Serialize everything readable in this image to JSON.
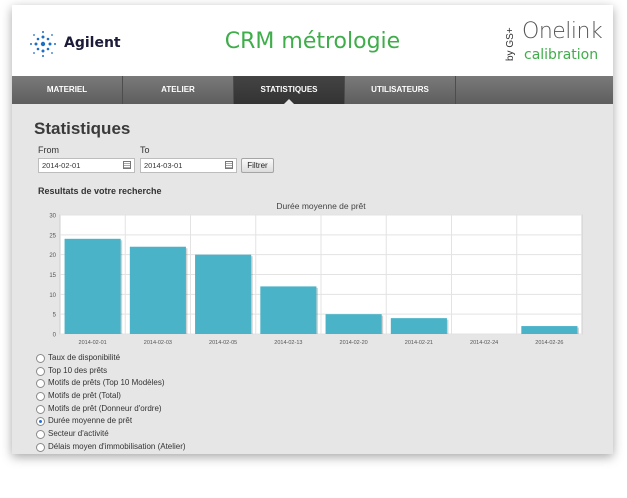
{
  "header": {
    "brand_left": "Agilent",
    "app_title": "CRM métrologie",
    "brand_right_by": "by GS+",
    "brand_right_name": "Onelink",
    "brand_right_sub": "calibration",
    "accent_green": "#3fae4a"
  },
  "nav": {
    "tabs": [
      {
        "label": "MATERIEL",
        "active": false
      },
      {
        "label": "ATELIER",
        "active": false
      },
      {
        "label": "STATISTIQUES",
        "active": true
      },
      {
        "label": "UTILISATEURS",
        "active": false
      }
    ]
  },
  "page": {
    "title": "Statistiques",
    "from_label": "From",
    "to_label": "To",
    "from_value": "2014-02-01",
    "to_value": "2014-03-01",
    "filter_label": "Filtrer",
    "results_title": "Resultats de votre recherche"
  },
  "chart_data": {
    "type": "bar",
    "title": "Durée moyenne de prêt",
    "categories": [
      "2014-02-01",
      "2014-02-03",
      "2014-02-05",
      "2014-02-13",
      "2014-02-20",
      "2014-02-21",
      "2014-02-24",
      "2014-02-26"
    ],
    "values": [
      24,
      22,
      20,
      12,
      5,
      4,
      0,
      2
    ],
    "ylim": [
      0,
      30
    ],
    "yticks": [
      0,
      5,
      10,
      15,
      20,
      25,
      30
    ],
    "grid": true,
    "bar_color": "#4ab3c8"
  },
  "options": [
    {
      "label": "Taux de disponibilité",
      "checked": false
    },
    {
      "label": "Top 10 des prêts",
      "checked": false
    },
    {
      "label": "Motifs de prêts (Top 10 Modèles)",
      "checked": false
    },
    {
      "label": "Motifs de prêt (Total)",
      "checked": false
    },
    {
      "label": "Motifs de prêt (Donneur d'ordre)",
      "checked": false
    },
    {
      "label": "Durée moyenne de prêt",
      "checked": true
    },
    {
      "label": "Secteur d'activité",
      "checked": false
    },
    {
      "label": "Délais moyen d'immobilisation (Atelier)",
      "checked": false
    }
  ]
}
